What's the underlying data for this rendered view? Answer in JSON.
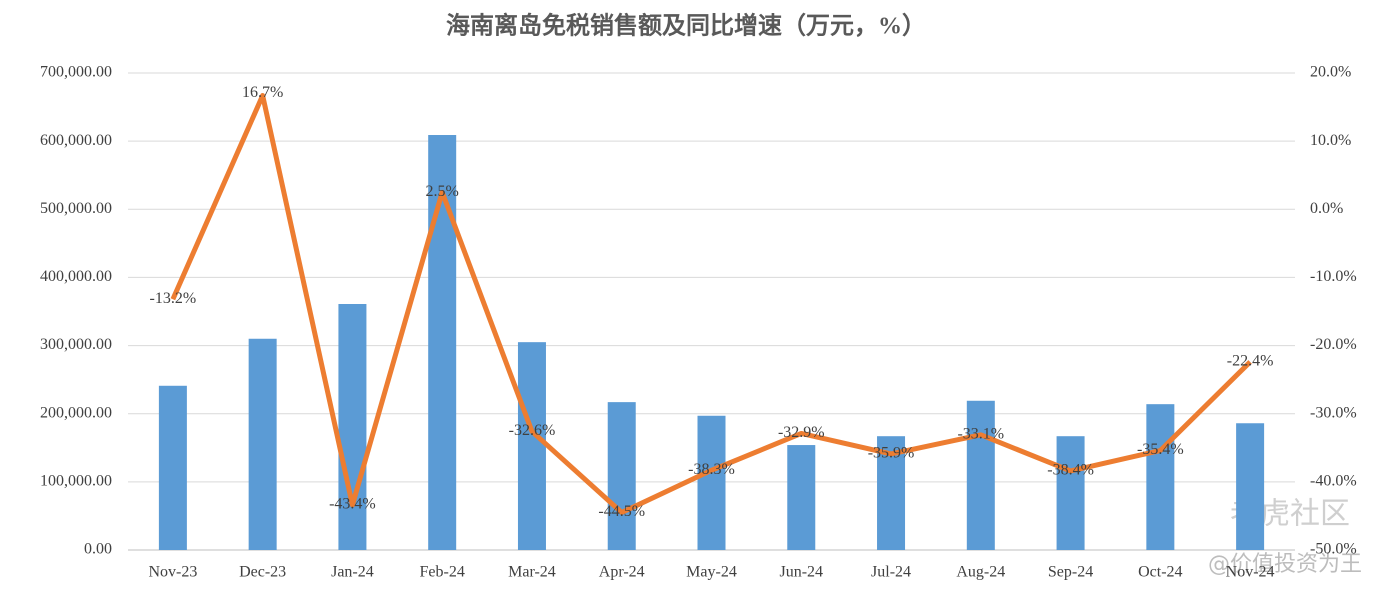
{
  "chart_data": {
    "type": "bar_line",
    "title": "海南离岛免税销售额及同比增速（万元，%）",
    "categories": [
      "Nov-23",
      "Dec-23",
      "Jan-24",
      "Feb-24",
      "Mar-24",
      "Apr-24",
      "May-24",
      "Jun-24",
      "Jul-24",
      "Aug-24",
      "Sep-24",
      "Oct-24",
      "Nov-24"
    ],
    "series": [
      {
        "type": "bar",
        "color": "#5b9bd5",
        "values": [
          241000,
          310000,
          361000,
          609000,
          305000,
          217000,
          197000,
          154000,
          167000,
          219000,
          167000,
          214000,
          186000
        ]
      },
      {
        "type": "line",
        "axis": "y2",
        "color": "#ed7d31",
        "values": [
          -13.2,
          16.7,
          -43.4,
          2.5,
          -32.6,
          -44.5,
          -38.3,
          -32.9,
          -35.9,
          -33.1,
          -38.4,
          -35.4,
          -22.4
        ],
        "value_labels": [
          "-13.2%",
          "16.7%",
          "-43.4%",
          "2.5%",
          "-32.6%",
          "-44.5%",
          "-38.3%",
          "-32.9%",
          "-35.9%",
          "-33.1%",
          "-38.4%",
          "-35.4%",
          "-22.4%"
        ]
      }
    ],
    "ylim": [
      0,
      700000
    ],
    "yticks": [
      {
        "value": 0,
        "label": "0.00"
      },
      {
        "value": 100000,
        "label": "100,000.00"
      },
      {
        "value": 200000,
        "label": "200,000.00"
      },
      {
        "value": 300000,
        "label": "300,000.00"
      },
      {
        "value": 400000,
        "label": "400,000.00"
      },
      {
        "value": 500000,
        "label": "500,000.00"
      },
      {
        "value": 600000,
        "label": "600,000.00"
      },
      {
        "value": 700000,
        "label": "700,000.00"
      }
    ],
    "y2lim": [
      -50,
      20
    ],
    "y2ticks": [
      {
        "value": -50,
        "label": "-50.0%"
      },
      {
        "value": -40,
        "label": "-40.0%"
      },
      {
        "value": -30,
        "label": "-30.0%"
      },
      {
        "value": -20,
        "label": "-20.0%"
      },
      {
        "value": -10,
        "label": "-10.0%"
      },
      {
        "value": 0,
        "label": "0.0%"
      },
      {
        "value": 10,
        "label": "10.0%"
      },
      {
        "value": 20,
        "label": "20.0%"
      }
    ],
    "grid": true
  },
  "watermark": {
    "logo": "老虎社区",
    "handle": "@价值投资为王"
  }
}
